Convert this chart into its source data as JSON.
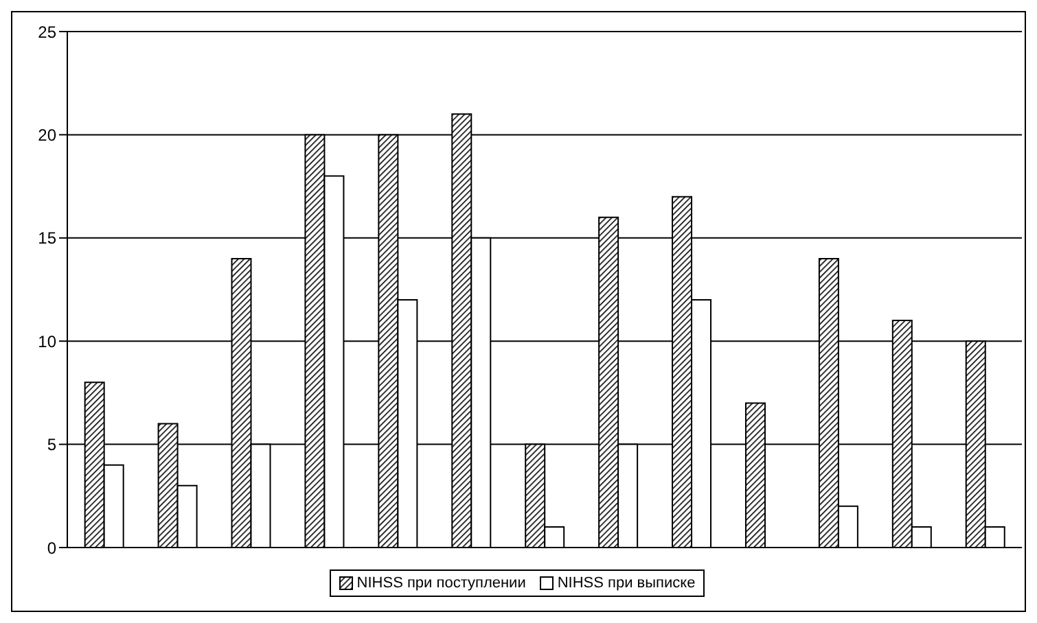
{
  "chart_data": {
    "type": "bar",
    "categories": [
      null,
      null,
      null,
      null,
      null,
      null,
      null,
      null,
      null,
      null,
      null,
      null,
      null
    ],
    "series": [
      {
        "name": "NIHSS при поступлении",
        "color": "#000000",
        "values": [
          8,
          6,
          14,
          20,
          20,
          21,
          5,
          16,
          17,
          7,
          14,
          11,
          10
        ]
      },
      {
        "name": "NIHSS при выписке",
        "color": "#ffffff",
        "values": [
          4,
          3,
          5,
          18,
          12,
          15,
          1,
          5,
          12,
          0,
          2,
          1,
          1
        ]
      }
    ],
    "ylim": [
      0,
      25
    ],
    "yticks": [
      0,
      5,
      10,
      15,
      20,
      25
    ],
    "grid": "y",
    "legend": "bottom"
  }
}
